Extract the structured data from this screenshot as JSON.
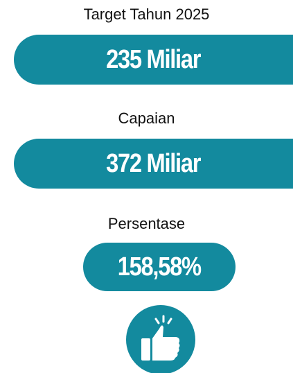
{
  "target": {
    "label": "Target Tahun 2025",
    "value": "235 Miliar"
  },
  "achievement": {
    "label": "Capaian",
    "value": "372 Miliar"
  },
  "percentage": {
    "label": "Persentase",
    "value": "158,58%"
  }
}
